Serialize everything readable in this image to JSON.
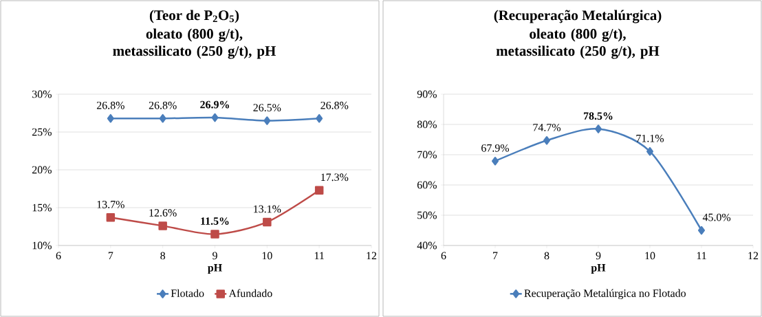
{
  "chart_data": [
    {
      "type": "line",
      "title": "(Teor de P$_{2}$O$_{5}$)",
      "subtitle": "oleato (800 g/t), metassilicato (250 g/t), pH",
      "xlabel": "pH",
      "x": [
        7,
        8,
        9,
        10,
        11
      ],
      "series": [
        {
          "name": "Flotado",
          "color": "#4a7ebb",
          "marker": "diamond",
          "values": [
            26.8,
            26.8,
            26.9,
            26.5,
            26.8
          ],
          "value_labels": [
            "26.8%",
            "26.8%",
            "**26.9%**",
            "26.5%",
            "26.8%"
          ]
        },
        {
          "name": "Afundado",
          "color": "#be4b48",
          "marker": "square",
          "values": [
            13.7,
            12.6,
            11.5,
            13.1,
            17.3
          ],
          "value_labels": [
            "13.7%",
            "12.6%",
            "**11.5%**",
            "13.1%",
            "17.3%"
          ]
        }
      ],
      "xlim": [
        6,
        12
      ],
      "xticks": [
        6,
        7,
        8,
        9,
        10,
        11,
        12
      ],
      "ylim": [
        10,
        30
      ],
      "yticks": [
        {
          "value": 10,
          "label": "10%"
        },
        {
          "value": 15,
          "label": "15%"
        },
        {
          "value": 20,
          "label": "20%"
        },
        {
          "value": 25,
          "label": "25%"
        },
        {
          "value": 30,
          "label": "30%"
        }
      ],
      "grid": "y",
      "legend": "bottom"
    },
    {
      "type": "line",
      "title": "(Recuperação Metalúrgica)",
      "subtitle": "oleato (800 g/t), metassilicato (250 g/t), pH",
      "xlabel": "pH",
      "x": [
        7,
        8,
        9,
        10,
        11
      ],
      "series": [
        {
          "name": "Recuperação Metalúrgica no Flotado",
          "color": "#4a7ebb",
          "marker": "diamond",
          "values": [
            67.9,
            74.7,
            78.5,
            71.1,
            45.0
          ],
          "value_labels": [
            "67.9%",
            "74.7%",
            "**78.5%**",
            "71.1%",
            "45.0%"
          ]
        }
      ],
      "xlim": [
        6,
        12
      ],
      "xticks": [
        6,
        7,
        8,
        9,
        10,
        11,
        12
      ],
      "ylim": [
        40,
        90
      ],
      "yticks": [
        {
          "value": 40,
          "label": "40%"
        },
        {
          "value": 50,
          "label": "50%"
        },
        {
          "value": 60,
          "label": "60%"
        },
        {
          "value": 70,
          "label": "70%"
        },
        {
          "value": 80,
          "label": "80%"
        },
        {
          "value": 90,
          "label": "90%"
        }
      ],
      "grid": "y",
      "legend": "bottom"
    }
  ]
}
